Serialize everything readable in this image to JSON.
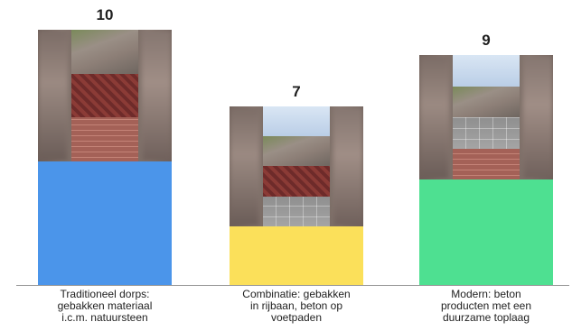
{
  "chart_data": {
    "type": "bar",
    "categories": [
      "Traditioneel dorps: gebakken materiaal i.c.m. natuursteen",
      "Combinatie: gebakken in rijbaan, beton op voetpaden",
      "Modern: beton producten met een duurzame toplaag"
    ],
    "category_lines": [
      [
        "Traditioneel dorps:",
        "gebakken materiaal",
        "i.c.m. natuursteen"
      ],
      [
        "Combinatie: gebakken",
        "in rijbaan, beton op",
        "voetpaden"
      ],
      [
        "Modern: beton",
        "producten met een",
        "duurzame toplaag"
      ]
    ],
    "values": [
      10,
      7,
      9
    ],
    "value_labels": [
      "10",
      "7",
      "9"
    ],
    "colors": [
      "#4b95ea",
      "#fbe05a",
      "#4ee091"
    ],
    "grid": false,
    "legend": "none"
  }
}
